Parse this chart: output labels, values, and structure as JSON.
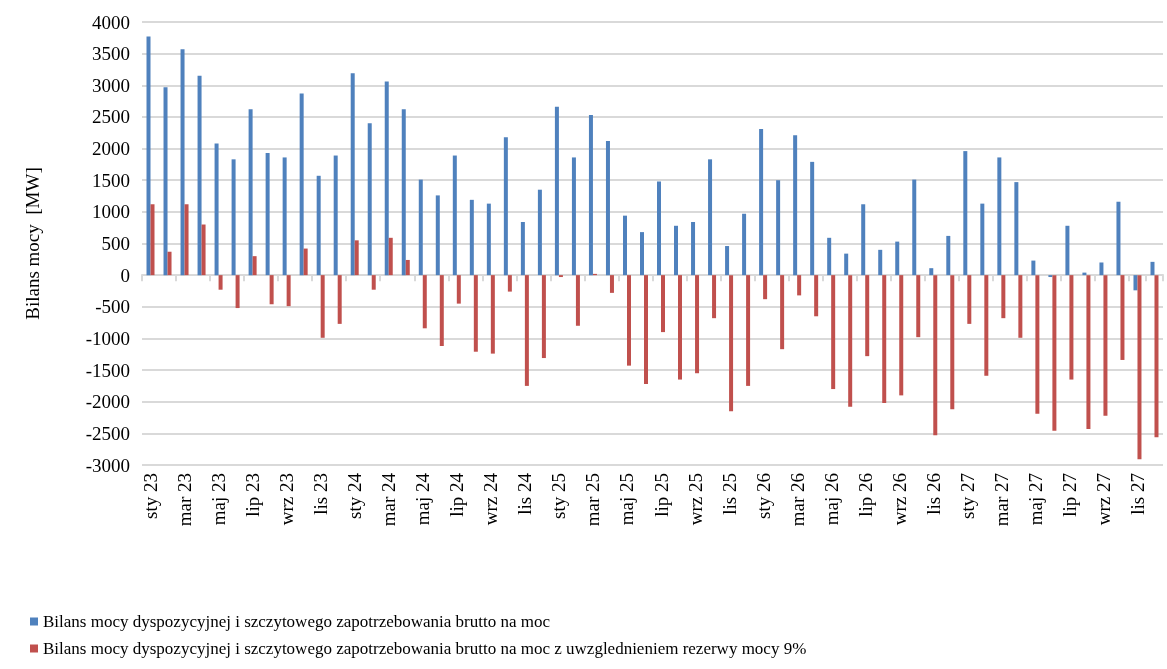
{
  "chart_data": {
    "type": "bar",
    "ylabel": "Bilans mocy  [MW]",
    "categories": [
      "sty 23",
      null,
      "mar 23",
      null,
      "maj 23",
      null,
      "lip 23",
      null,
      "wrz 23",
      null,
      "lis 23",
      null,
      "sty 24",
      null,
      "mar 24",
      null,
      "maj 24",
      null,
      "lip 24",
      null,
      "wrz 24",
      null,
      "lis 24",
      null,
      "sty 25",
      null,
      "mar 25",
      null,
      "maj 25",
      null,
      "lip 25",
      null,
      "wrz 25",
      null,
      "lis 25",
      null,
      "sty 26",
      null,
      "mar 26",
      null,
      "maj 26",
      null,
      "lip 26",
      null,
      "wrz 26",
      null,
      "lis 26",
      null,
      "sty 27",
      null,
      "mar 27",
      null,
      "maj 27",
      null,
      "lip 27",
      null,
      "wrz 27",
      null,
      "lis 27",
      null
    ],
    "series": [
      {
        "name": "Bilans mocy dyspozycyjnej i szczytowego zapotrzebowania brutto na moc",
        "color": "#4f81bd",
        "values": [
          3770,
          2970,
          3570,
          3150,
          2080,
          1830,
          2620,
          1930,
          1860,
          2870,
          1570,
          1890,
          3190,
          2400,
          3060,
          2620,
          1510,
          1260,
          1890,
          1190,
          1130,
          2180,
          840,
          1350,
          2660,
          1860,
          2530,
          2120,
          940,
          680,
          1480,
          780,
          840,
          1830,
          460,
          970,
          2310,
          1500,
          2210,
          1790,
          590,
          340,
          1120,
          400,
          530,
          1510,
          110,
          620,
          1960,
          1130,
          1860,
          1470,
          230,
          -30,
          780,
          40,
          200,
          1160,
          -240,
          210
        ]
      },
      {
        "name": "Bilans mocy dyspozycyjnej i szczytowego zapotrzebowania brutto na moc z uwzglednieniem rezerwy mocy 9%",
        "color": "#c0504d",
        "values": [
          1120,
          370,
          1120,
          800,
          -230,
          -520,
          300,
          -460,
          -490,
          420,
          -990,
          -770,
          550,
          -230,
          590,
          240,
          -840,
          -1120,
          -450,
          -1210,
          -1240,
          -260,
          -1750,
          -1310,
          -30,
          -800,
          20,
          -280,
          -1430,
          -1720,
          -900,
          -1650,
          -1550,
          -680,
          -2150,
          -1750,
          -380,
          -1170,
          -320,
          -650,
          -1800,
          -2080,
          -1280,
          -2020,
          -1900,
          -980,
          -2530,
          -2120,
          -770,
          -1590,
          -680,
          -990,
          -2190,
          -2460,
          -1650,
          -2430,
          -2220,
          -1340,
          -2910,
          -2560
        ]
      }
    ],
    "ylim": [
      -3000,
      4000
    ],
    "yticks": [
      -3000,
      -2500,
      -2000,
      -1500,
      -1000,
      -500,
      0,
      500,
      1000,
      1500,
      2000,
      2500,
      3000,
      3500,
      4000
    ],
    "grid": "y",
    "legend": "bottom left"
  }
}
